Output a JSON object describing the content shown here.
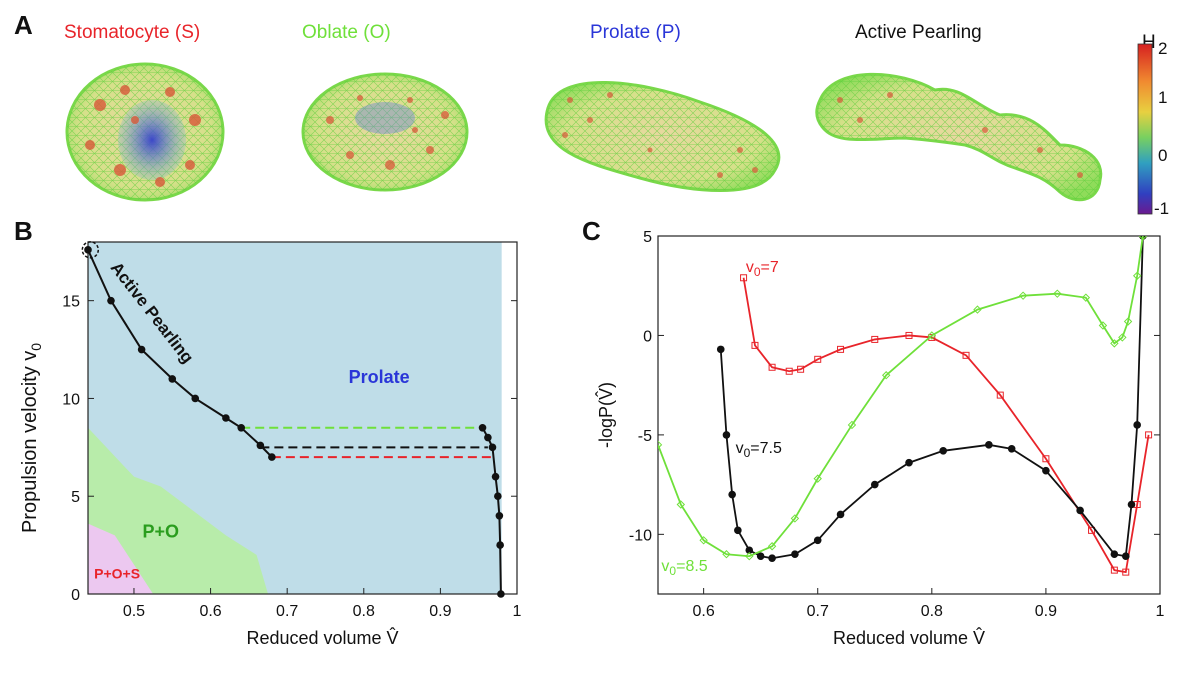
{
  "panel_labels": {
    "a": "A",
    "b": "B",
    "c": "C"
  },
  "panel_a": {
    "shapes": [
      {
        "label": "Stomatocyte (S)",
        "color": "#e8242a"
      },
      {
        "label": "Oblate (O)",
        "color": "#6fe03a"
      },
      {
        "label": "Prolate (P)",
        "color": "#2a36d8"
      },
      {
        "label": "Active Pearling",
        "color": "#111111"
      }
    ],
    "colorbar": {
      "title": "H",
      "ticks": [
        "2",
        "1",
        "0",
        "-1"
      ]
    }
  },
  "chart_data": [
    {
      "type": "phase-diagram",
      "panel": "B",
      "xlabel": "Reduced volume V̂",
      "ylabel_main": "Propulsion velocity v",
      "ylabel_sub": "0",
      "xlim": [
        0.44,
        1.0
      ],
      "ylim": [
        0,
        18
      ],
      "xticks": [
        "0.5",
        "0.6",
        "0.7",
        "0.8",
        "0.9",
        "1"
      ],
      "xtick_values": [
        0.5,
        0.6,
        0.7,
        0.8,
        0.9,
        1.0
      ],
      "yticks": [
        "0",
        "5",
        "10",
        "15"
      ],
      "ytick_values": [
        0,
        5,
        10,
        15
      ],
      "regions": [
        {
          "name": "Prolate",
          "label": "Prolate",
          "label_color": "#2a36d8",
          "fill": "#bfdde8",
          "label_at": [
            0.82,
            10.8
          ],
          "polygon": [
            [
              0.44,
              0
            ],
            [
              0.98,
              0
            ],
            [
              0.98,
              18
            ],
            [
              0.44,
              18
            ]
          ]
        },
        {
          "name": "P+O",
          "label": "P+O",
          "label_color": "#2a9d1e",
          "fill": "#b8ecaa",
          "label_at": [
            0.535,
            2.9
          ],
          "polygon": [
            [
              0.44,
              0
            ],
            [
              0.675,
              0
            ],
            [
              0.66,
              2
            ],
            [
              0.62,
              3
            ],
            [
              0.535,
              5.5
            ],
            [
              0.5,
              6
            ],
            [
              0.44,
              8.5
            ]
          ]
        },
        {
          "name": "P+O+S",
          "label": "P+O+S",
          "label_color": "#e8242a",
          "fill": "#ecc8f0",
          "label_at": [
            0.478,
            0.8
          ],
          "polygon": [
            [
              0.44,
              0
            ],
            [
              0.525,
              0
            ],
            [
              0.5,
              1.5
            ],
            [
              0.475,
              3
            ],
            [
              0.44,
              3.6
            ]
          ]
        }
      ],
      "series": [
        {
          "name": "Active Pearling boundary",
          "style": "line-dots",
          "x": [
            0.44,
            0.47,
            0.51,
            0.55,
            0.58,
            0.62,
            0.64,
            0.665,
            0.68
          ],
          "y": [
            17.6,
            15,
            12.5,
            11,
            10,
            9,
            8.5,
            7.6,
            7.0
          ]
        },
        {
          "name": "Right boundary",
          "style": "line-dots",
          "x": [
            0.955,
            0.962,
            0.968,
            0.972,
            0.975,
            0.977,
            0.978,
            0.979
          ],
          "y": [
            8.5,
            8.0,
            7.5,
            6.0,
            5.0,
            4.0,
            2.5,
            0
          ]
        }
      ],
      "tie_lines": [
        {
          "v0": 8.5,
          "x": [
            0.64,
            0.955
          ],
          "color": "#6fe03a"
        },
        {
          "v0": 7.5,
          "x": [
            0.665,
            0.962
          ],
          "color": "#111111"
        },
        {
          "v0": 7.0,
          "x": [
            0.68,
            0.968
          ],
          "color": "#e8242a"
        }
      ],
      "annotation": {
        "text": "Active Pearling",
        "at": [
          0.445,
          17.2
        ]
      }
    },
    {
      "type": "line",
      "panel": "C",
      "xlabel": "Reduced volume V̂",
      "ylabel": "-logP(V̂)",
      "xlim": [
        0.56,
        1.0
      ],
      "ylim": [
        -13,
        5
      ],
      "xticks": [
        "0.6",
        "0.7",
        "0.8",
        "0.9",
        "1"
      ],
      "xtick_values": [
        0.6,
        0.7,
        0.8,
        0.9,
        1.0
      ],
      "yticks": [
        "5",
        "0",
        "-5",
        "-10"
      ],
      "ytick_values": [
        5,
        0,
        -5,
        -10
      ],
      "series": [
        {
          "name": "v0=7",
          "label_main": "v",
          "label_sub": "0",
          "label_rest": "=7",
          "color": "#e8242a",
          "marker": "square",
          "label_at": [
            0.637,
            3.2
          ],
          "x": [
            0.635,
            0.645,
            0.66,
            0.675,
            0.685,
            0.7,
            0.72,
            0.75,
            0.78,
            0.8,
            0.83,
            0.86,
            0.9,
            0.94,
            0.96,
            0.97,
            0.98,
            0.99
          ],
          "y": [
            2.9,
            -0.5,
            -1.6,
            -1.8,
            -1.7,
            -1.2,
            -0.7,
            -0.2,
            0.0,
            -0.1,
            -1.0,
            -3.0,
            -6.2,
            -9.8,
            -11.8,
            -11.9,
            -8.5,
            -5.0
          ]
        },
        {
          "name": "v0=7.5",
          "label_main": "v",
          "label_sub": "0",
          "label_rest": "=7.5",
          "color": "#111111",
          "marker": "circle",
          "label_at": [
            0.628,
            -5.9
          ],
          "x": [
            0.615,
            0.62,
            0.625,
            0.63,
            0.64,
            0.65,
            0.66,
            0.68,
            0.7,
            0.72,
            0.75,
            0.78,
            0.81,
            0.85,
            0.87,
            0.9,
            0.93,
            0.96,
            0.97,
            0.975,
            0.98,
            0.985
          ],
          "y": [
            -0.7,
            -5.0,
            -8.0,
            -9.8,
            -10.8,
            -11.1,
            -11.2,
            -11.0,
            -10.3,
            -9.0,
            -7.5,
            -6.4,
            -5.8,
            -5.5,
            -5.7,
            -6.8,
            -8.8,
            -11.0,
            -11.1,
            -8.5,
            -4.5,
            5.0
          ]
        },
        {
          "name": "v0=8.5",
          "label_main": "v",
          "label_sub": "0",
          "label_rest": "=8.5",
          "color": "#6fe03a",
          "marker": "diamond",
          "label_at": [
            0.563,
            -11.85
          ],
          "x": [
            0.56,
            0.58,
            0.6,
            0.62,
            0.64,
            0.66,
            0.68,
            0.7,
            0.73,
            0.76,
            0.8,
            0.84,
            0.88,
            0.91,
            0.935,
            0.95,
            0.96,
            0.967,
            0.972,
            0.98,
            0.985
          ],
          "y": [
            -5.5,
            -8.5,
            -10.3,
            -11.0,
            -11.1,
            -10.6,
            -9.2,
            -7.2,
            -4.5,
            -2.0,
            0.0,
            1.3,
            2.0,
            2.1,
            1.9,
            0.5,
            -0.4,
            -0.1,
            0.7,
            3.0,
            5.0
          ]
        }
      ]
    }
  ]
}
